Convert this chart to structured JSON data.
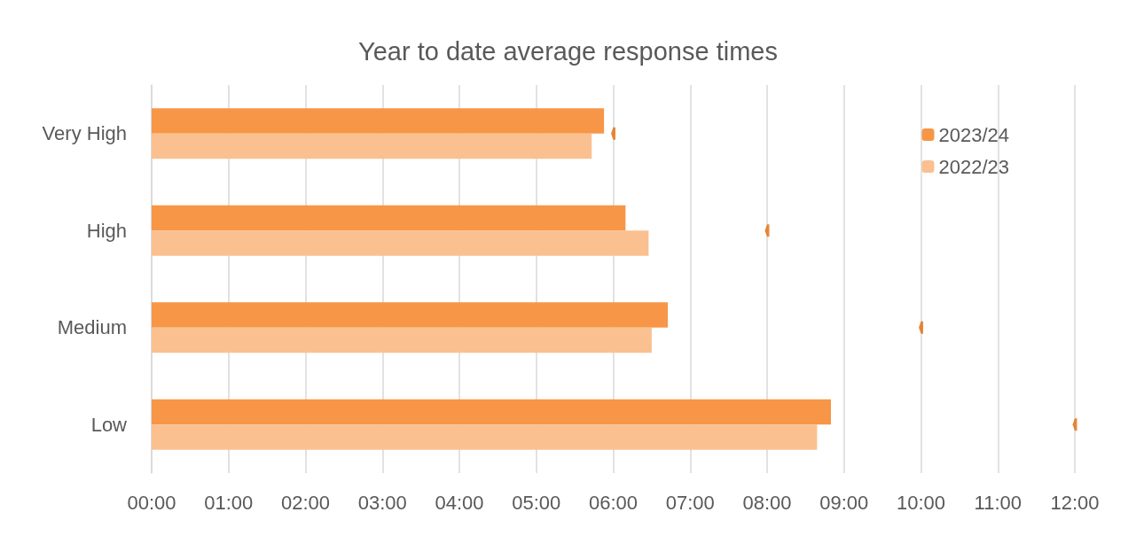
{
  "chart_data": {
    "type": "bar",
    "orientation": "horizontal",
    "title": "Year to date average response times",
    "categories": [
      "Very High",
      "High",
      "Medium",
      "Low"
    ],
    "series": [
      {
        "name": "2023/24",
        "color": "#f79646",
        "values": [
          5.88,
          6.16,
          6.71,
          8.83
        ]
      },
      {
        "name": "2022/23",
        "color": "#fac090",
        "values": [
          5.72,
          6.46,
          6.5,
          8.65
        ]
      },
      {
        "type": "scatter",
        "color": "#e46c0a",
        "x": [
          "Very High",
          "High",
          "Medium",
          "Low"
        ],
        "values": [
          6,
          8,
          10,
          12
        ]
      }
    ],
    "xlim": [
      0,
      12
    ],
    "xticks": [
      {
        "value": 0,
        "label": "00:00"
      },
      {
        "value": 1,
        "label": "01:00"
      },
      {
        "value": 2,
        "label": "02:00"
      },
      {
        "value": 3,
        "label": "03:00"
      },
      {
        "value": 4,
        "label": "04:00"
      },
      {
        "value": 5,
        "label": "05:00"
      },
      {
        "value": 6,
        "label": "06:00"
      },
      {
        "value": 7,
        "label": "07:00"
      },
      {
        "value": 8,
        "label": "08:00"
      },
      {
        "value": 9,
        "label": "09:00"
      },
      {
        "value": 10,
        "label": "10:00"
      },
      {
        "value": 11,
        "label": "11:00"
      },
      {
        "value": 12,
        "label": "12:00"
      }
    ],
    "grid": "x",
    "legend": "top right"
  }
}
